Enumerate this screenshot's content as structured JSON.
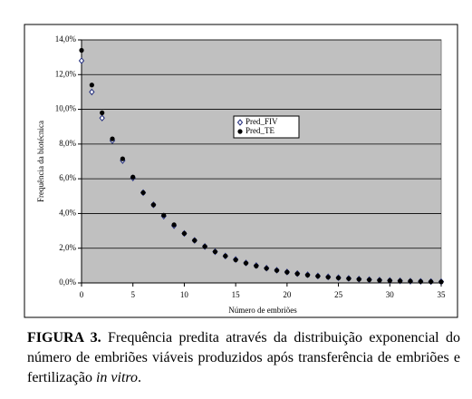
{
  "chart_data": {
    "type": "scatter",
    "x_label": "Número de embriões",
    "y_label": "Frequência da biotécnica",
    "x": [
      0,
      1,
      2,
      3,
      4,
      5,
      6,
      7,
      8,
      9,
      10,
      11,
      12,
      13,
      14,
      15,
      16,
      17,
      18,
      19,
      20,
      21,
      22,
      23,
      24,
      25,
      26,
      27,
      28,
      29,
      30,
      31,
      32,
      33,
      34,
      35
    ],
    "series": [
      {
        "name": "Pred_FIV",
        "color": "#1f2a7a",
        "marker": "diamond",
        "values": [
          12.8,
          11.0,
          9.5,
          8.2,
          7.05,
          6.05,
          5.2,
          4.5,
          3.85,
          3.3,
          2.85,
          2.45,
          2.1,
          1.8,
          1.55,
          1.35,
          1.15,
          1.0,
          0.85,
          0.73,
          0.63,
          0.54,
          0.47,
          0.4,
          0.35,
          0.3,
          0.26,
          0.22,
          0.19,
          0.16,
          0.14,
          0.12,
          0.1,
          0.09,
          0.08,
          0.07
        ]
      },
      {
        "name": "Pred_TE",
        "color": "#000000",
        "marker": "circle",
        "values": [
          13.4,
          11.4,
          9.8,
          8.3,
          7.15,
          6.1,
          5.2,
          4.5,
          3.9,
          3.35,
          2.85,
          2.45,
          2.1,
          1.8,
          1.55,
          1.33,
          1.14,
          0.98,
          0.84,
          0.72,
          0.62,
          0.53,
          0.45,
          0.39,
          0.33,
          0.29,
          0.25,
          0.21,
          0.18,
          0.15,
          0.13,
          0.11,
          0.1,
          0.08,
          0.07,
          0.06
        ]
      }
    ],
    "xlim": [
      0,
      35
    ],
    "xticks": [
      0,
      5,
      10,
      15,
      20,
      25,
      30,
      35
    ],
    "ylim": [
      0,
      14
    ],
    "yticks": [
      {
        "value": 0,
        "label": "0,0%"
      },
      {
        "value": 2,
        "label": "2,0%"
      },
      {
        "value": 4,
        "label": "4,0%"
      },
      {
        "value": 6,
        "label": "6,0%"
      },
      {
        "value": 8,
        "label": "8,0%"
      },
      {
        "value": 10,
        "label": "10,0%"
      },
      {
        "value": 12,
        "label": "12,0%"
      },
      {
        "value": 14,
        "label": "14,0%"
      }
    ],
    "grid": true,
    "plot_background": "#c0c0c0"
  },
  "caption": {
    "label": "FIGURA 3.",
    "text": " Frequência predita através da distribuição exponencial do número de embriões viáveis produzidos após transferência de embriões e fertilização ",
    "italic": "in vitro",
    "end": "."
  }
}
